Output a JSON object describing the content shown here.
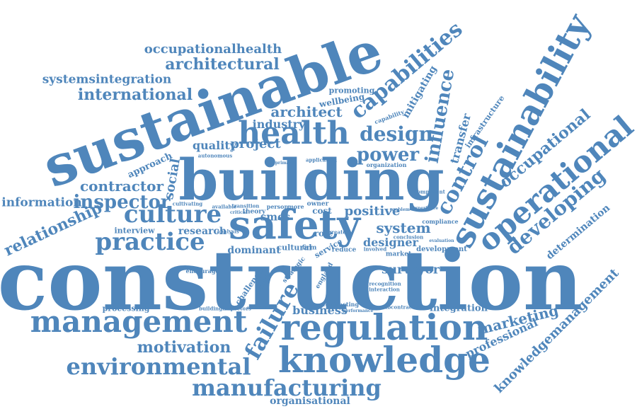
{
  "style": {
    "word_color": "#4f86bb",
    "background": "#ffffff"
  },
  "words": [
    "construction",
    "building",
    "sustainable",
    "safety",
    "health",
    "regulation",
    "knowledge",
    "management",
    "sustainability",
    "operational",
    "capabilities",
    "environmental",
    "manufacturing",
    "culture",
    "practice",
    "design",
    "failure",
    "power",
    "control",
    "influence",
    "developing",
    "occupational",
    "architectural",
    "occupationalhealth",
    "systemsintegration",
    "international",
    "architect",
    "industry",
    "quality",
    "project",
    "contractor",
    "inspector",
    "information",
    "relationship",
    "social",
    "approach",
    "interview",
    "research",
    "system",
    "positive",
    "designer",
    "smes",
    "cost",
    "role",
    "dominant",
    "cultural",
    "service",
    "surveyor",
    "business",
    "processing",
    "integration",
    "marketing",
    "professional",
    "knowledgemanagement",
    "motivation",
    "organisational",
    "determination",
    "transfer",
    "mitigating",
    "promoting",
    "wellbeing",
    "infrastructure",
    "challenge",
    "encourage",
    "theory",
    "market",
    "development",
    "compliance",
    "organization",
    "strategic",
    "england",
    "contracting",
    "subcontractor",
    "recognition",
    "interaction",
    "buildinginspectors",
    "reduce",
    "owner",
    "firm",
    "conclusion",
    "involved",
    "capability",
    "autonomous",
    "cultivating",
    "transition",
    "available",
    "person",
    "more",
    "membership",
    "performance",
    "application",
    "analysis",
    "evaluation",
    "component",
    "experience",
    "problem",
    "greater",
    "critical",
    "facilitate",
    "primary"
  ]
}
